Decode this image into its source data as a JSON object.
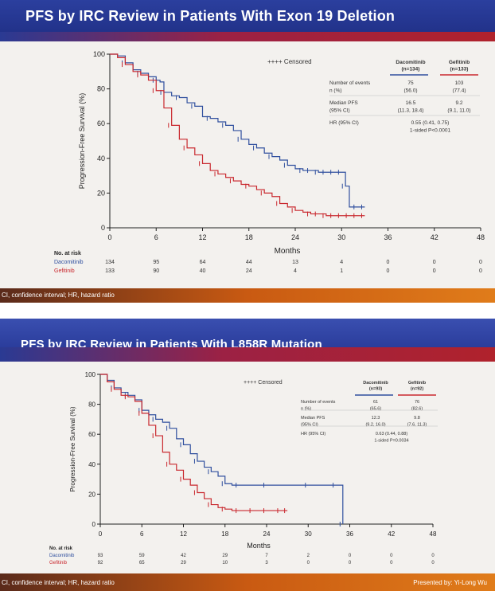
{
  "slides": [
    {
      "title": "PFS by IRC Review in Patients With Exon 19 Deletion",
      "footer_note": "CI, confidence interval; HR, hazard ratio",
      "presenter": "",
      "chart_data": {
        "type": "line",
        "step": true,
        "title": "PFS by IRC Review in Patients With Exon 19 Deletion",
        "xlabel": "Months",
        "ylabel": "Progression-Free Survival (%)",
        "xlim": [
          0,
          48
        ],
        "ylim": [
          0,
          100
        ],
        "xticks": [
          0,
          6,
          12,
          18,
          24,
          30,
          36,
          42,
          48
        ],
        "yticks": [
          0,
          20,
          40,
          60,
          80,
          100
        ],
        "legend": "++++ Censored",
        "series": [
          {
            "name": "Dacomitinib",
            "color": "#2f4f9e",
            "x": [
              0,
              1,
              2,
              3,
              4,
              5,
              6,
              6.5,
              7,
              8,
              9,
              10,
              11,
              12,
              13,
              14,
              15,
              16,
              17,
              18,
              19,
              20,
              21,
              22,
              23,
              24,
              25,
              26,
              27,
              28,
              29,
              30,
              30.5,
              31,
              32,
              33
            ],
            "y": [
              100,
              99,
              95,
              91,
              89,
              87,
              85,
              84,
              78,
              76,
              75,
              72,
              70,
              64,
              63,
              61,
              59,
              56,
              51,
              48,
              46,
              43,
              41,
              39,
              36,
              34,
              33,
              33,
              32,
              32,
              32,
              32,
              24,
              12,
              12,
              12
            ]
          },
          {
            "name": "Gefitinib",
            "color": "#c9282e",
            "x": [
              0,
              1,
              2,
              3,
              4,
              5,
              6,
              7,
              8,
              9,
              10,
              11,
              12,
              13,
              14,
              15,
              16,
              17,
              18,
              19,
              20,
              21,
              22,
              23,
              24,
              25,
              26,
              27,
              28,
              29,
              30,
              31,
              32,
              33
            ],
            "y": [
              100,
              98,
              94,
              90,
              88,
              85,
              79,
              69,
              59,
              51,
              46,
              42,
              37,
              33,
              31,
              29,
              27,
              25,
              24,
              22,
              20,
              18,
              14,
              12,
              10,
              9,
              8,
              8,
              7,
              7,
              7,
              7,
              7,
              7
            ]
          }
        ],
        "stats_table": {
          "columns": [
            "Dacomitinib\n(n=134)",
            "Gefitinib\n(n=133)"
          ],
          "rows": [
            {
              "label": "Number of events\nn (%)",
              "values": [
                "75\n(56.0)",
                "103\n(77.4)"
              ]
            },
            {
              "label": "Median PFS\n(95% CI)",
              "values": [
                "16.5\n(11.3, 18.4)",
                "9.2\n(9.1, 11.0)"
              ]
            },
            {
              "label": "HR (95% CI)",
              "values": [
                "0.55 (0.41, 0.75)\n1-sided P<0.0001"
              ]
            }
          ]
        },
        "at_risk": {
          "label": "No. at risk",
          "rows": [
            {
              "name": "Dacomitinib",
              "values": [
                "134",
                "95",
                "64",
                "44",
                "13",
                "4",
                "0",
                "0",
                "0"
              ]
            },
            {
              "name": "Gefitinib",
              "values": [
                "133",
                "90",
                "40",
                "24",
                "4",
                "1",
                "0",
                "0",
                "0"
              ]
            }
          ]
        }
      }
    },
    {
      "title": "PFS by IRC Review in Patients With L858R Mutation",
      "footer_note": "CI, confidence interval; HR, hazard ratio",
      "presenter": "Presented by: Yi-Long Wu",
      "chart_data": {
        "type": "line",
        "step": true,
        "title": "PFS by IRC Review in Patients With L858R Mutation",
        "xlabel": "Months",
        "ylabel": "Progression-Free Survival (%)",
        "xlim": [
          0,
          48
        ],
        "ylim": [
          0,
          100
        ],
        "xticks": [
          0,
          6,
          12,
          18,
          24,
          30,
          36,
          42,
          48
        ],
        "yticks": [
          0,
          20,
          40,
          60,
          80,
          100
        ],
        "legend": "++++ Censored",
        "series": [
          {
            "name": "Dacomitinib",
            "color": "#2f4f9e",
            "x": [
              0,
              1,
              2,
              3,
              4,
              5,
              6,
              7,
              8,
              9,
              10,
              11,
              12,
              13,
              14,
              15,
              16,
              17,
              18,
              19,
              20,
              24,
              30,
              34,
              35
            ],
            "y": [
              100,
              96,
              91,
              88,
              86,
              83,
              76,
              73,
              70,
              68,
              64,
              57,
              53,
              47,
              42,
              38,
              35,
              32,
              27,
              26,
              26,
              26,
              26,
              26,
              0
            ]
          },
          {
            "name": "Gefitinib",
            "color": "#c9282e",
            "x": [
              0,
              1,
              2,
              3,
              4,
              5,
              6,
              7,
              8,
              9,
              10,
              11,
              12,
              13,
              14,
              15,
              16,
              17,
              18,
              19,
              20,
              22,
              24,
              26,
              27
            ],
            "y": [
              100,
              95,
              90,
              86,
              85,
              82,
              74,
              66,
              59,
              48,
              40,
              36,
              30,
              26,
              21,
              17,
              13,
              11,
              10,
              9,
              9,
              9,
              9,
              9,
              9
            ]
          }
        ],
        "stats_table": {
          "columns": [
            "Dacomitinib\n(n=93)",
            "Gefitinib\n(n=92)"
          ],
          "rows": [
            {
              "label": "Number of events\nn (%)",
              "values": [
                "61\n(65.6)",
                "76\n(82.6)"
              ]
            },
            {
              "label": "Median PFS\n(95% CI)",
              "values": [
                "12.3\n(9.2, 16.0)",
                "9.8\n(7.6, 11.3)"
              ]
            },
            {
              "label": "HR (95% CI)",
              "values": [
                "0.63 (0.44, 0.88)\n1-sided P=0.0034"
              ]
            }
          ]
        },
        "at_risk": {
          "label": "No. at risk",
          "rows": [
            {
              "name": "Dacomitinib",
              "values": [
                "93",
                "59",
                "42",
                "29",
                "7",
                "2",
                "0",
                "0",
                "0"
              ]
            },
            {
              "name": "Gefitinib",
              "values": [
                "92",
                "65",
                "29",
                "10",
                "3",
                "0",
                "0",
                "0",
                "0"
              ]
            }
          ]
        }
      }
    }
  ]
}
